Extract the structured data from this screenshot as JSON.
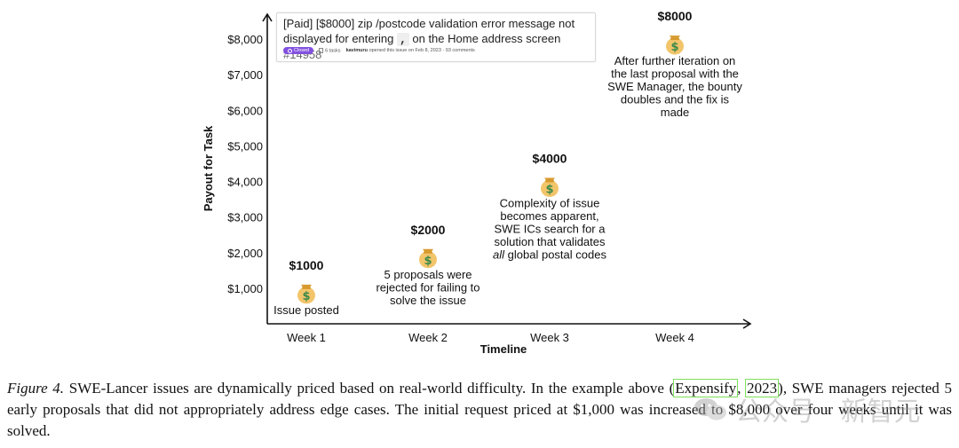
{
  "chart_data": {
    "type": "scatter",
    "xlabel": "Timeline",
    "ylabel": "Payout for Task",
    "categories": [
      "Week 1",
      "Week 2",
      "Week 3",
      "Week 4"
    ],
    "y_ticks": [
      "$1,000",
      "$2,000",
      "$3,000",
      "$4,000",
      "$5,000",
      "$6,000",
      "$7,000",
      "$8,000"
    ],
    "y_tick_values": [
      1000,
      2000,
      3000,
      4000,
      5000,
      6000,
      7000,
      8000
    ],
    "ylim": [
      0,
      8600
    ],
    "grid": false,
    "points": [
      {
        "x": "Week 1",
        "value": 1000,
        "label": "$1000",
        "annotation": [
          "Issue posted"
        ]
      },
      {
        "x": "Week 2",
        "value": 2000,
        "label": "$2000",
        "annotation": [
          "5 proposals were",
          "rejected for failing to",
          "solve the issue"
        ]
      },
      {
        "x": "Week 3",
        "value": 4000,
        "label": "$4000",
        "annotation": [
          "Complexity of issue",
          "becomes apparent,",
          "SWE ICs search for a",
          "solution that validates",
          "all global postal codes"
        ]
      },
      {
        "x": "Week 4",
        "value": 8000,
        "label": "$8000",
        "annotation": [
          "After further iteration on",
          "the last proposal with the",
          "SWE Manager, the bounty",
          "doubles and the fix is",
          "made"
        ]
      }
    ],
    "marker_icon": "money-bag-icon"
  },
  "issue": {
    "title_line1": "[Paid] [$8000] zip /postcode validation error message not",
    "title_line2_pre": "displayed for entering",
    "title_code": ",",
    "title_line2_post": "on the Home address screen",
    "number": "#14958",
    "status": "Closed",
    "tasks": "6 tasks",
    "user": "kavimuru",
    "meta_text": "opened this issue on Feb 8, 2023 · 93 comments",
    "status_color": "#8250df"
  },
  "caption": {
    "label": "Figure 4.",
    "text_before": "SWE-Lancer issues are dynamically priced based on real-world difficulty. In the example above (",
    "cite_name": "Expensify",
    "cite_sep": ", ",
    "cite_year": "2023",
    "text_after": "), SWE managers rejected 5 early proposals that did not appropriately address edge cases. The initial request priced at $1,000 was increased to $8,000 over four weeks until it was solved."
  },
  "watermark": {
    "text": "公众号 · 新智元",
    "icon": "wechat-icon"
  },
  "colors": {
    "bag": "#f3c56b",
    "bag_dark": "#d79a2e",
    "dollar": "#3d8a4a"
  }
}
